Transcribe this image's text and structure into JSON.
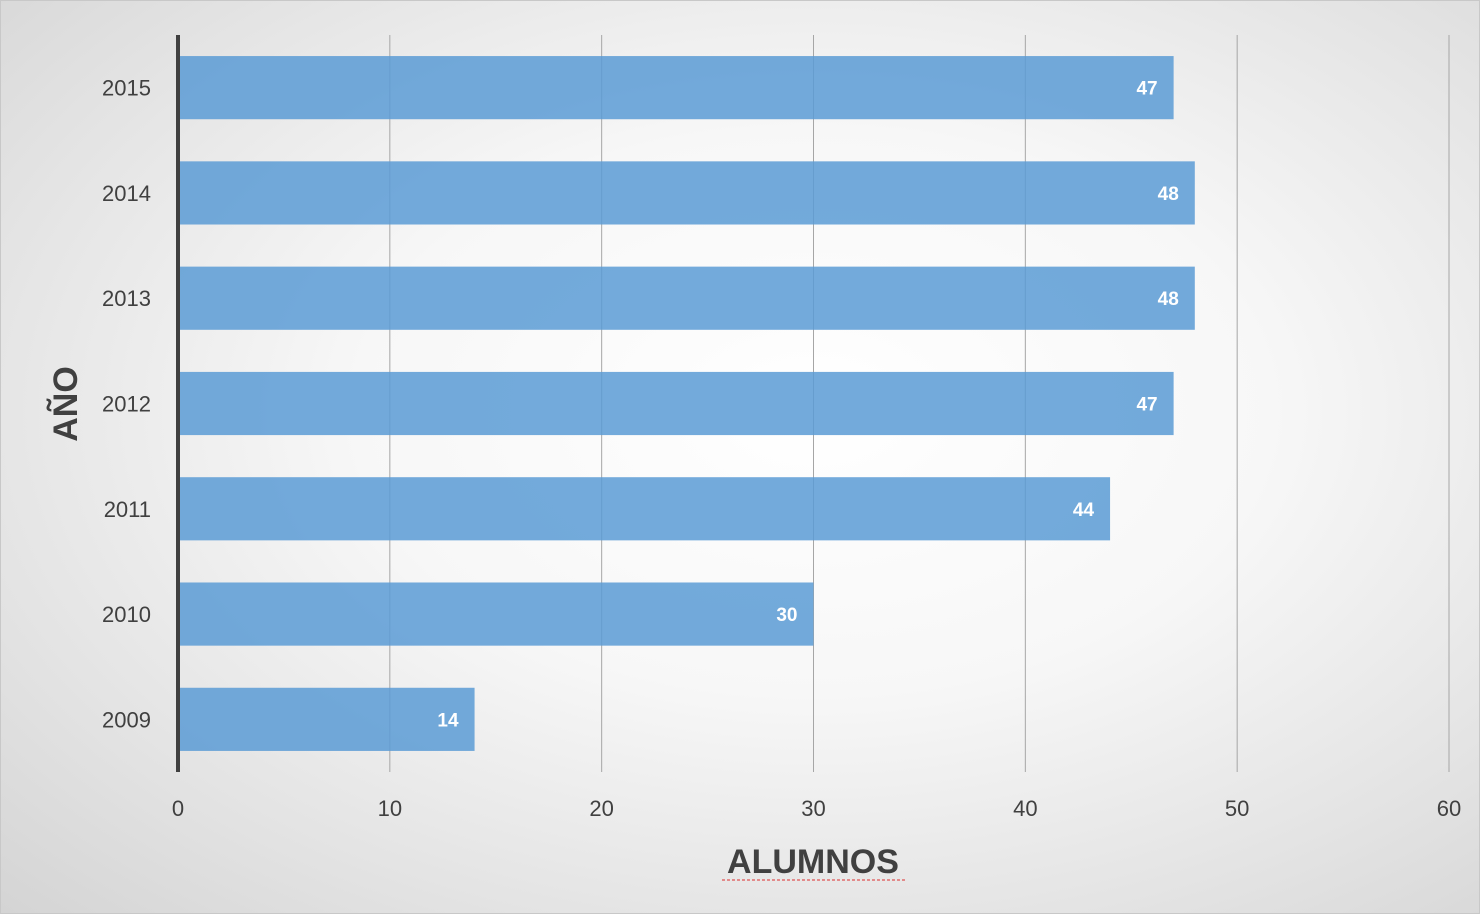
{
  "chart_data": {
    "type": "bar",
    "orientation": "horizontal",
    "categories": [
      "2015",
      "2014",
      "2013",
      "2012",
      "2011",
      "2010",
      "2009"
    ],
    "values": [
      47,
      48,
      48,
      47,
      44,
      30,
      14
    ],
    "data_labels": [
      "47",
      "48",
      "48",
      "47",
      "44",
      "30",
      "14"
    ],
    "xlabel": "ALUMNOS",
    "ylabel": "AÑO",
    "xlim": [
      0,
      60
    ],
    "xticks": [
      "0",
      "10",
      "20",
      "30",
      "40",
      "50",
      "60"
    ],
    "grid": "vertical",
    "legend": "none"
  },
  "colors": {
    "bar": "#5b9bd5",
    "grid": "#a6a6a6",
    "axis": "#404040",
    "text": "#404040",
    "label": "#ffffff"
  }
}
